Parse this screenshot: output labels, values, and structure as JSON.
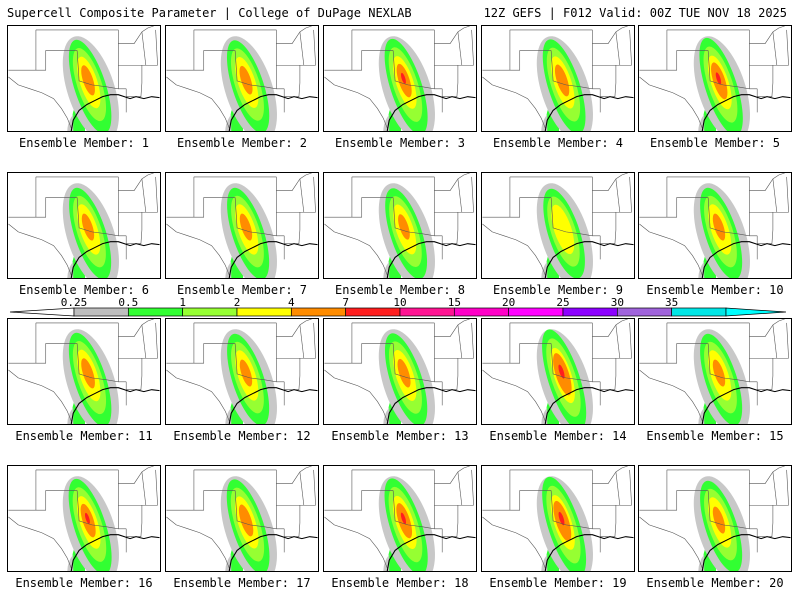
{
  "header": {
    "left": "Supercell Composite Parameter | College of DuPage NEXLAB",
    "right": "12Z GEFS | F012 Valid: 00Z TUE NOV 18 2025"
  },
  "panels": [
    {
      "label": "Ensemble Member: 1",
      "intensity": 0.55
    },
    {
      "label": "Ensemble Member: 2",
      "intensity": 0.5
    },
    {
      "label": "Ensemble Member: 3",
      "intensity": 0.65
    },
    {
      "label": "Ensemble Member: 4",
      "intensity": 0.6
    },
    {
      "label": "Ensemble Member: 5",
      "intensity": 0.75
    },
    {
      "label": "Ensemble Member: 6",
      "intensity": 0.45
    },
    {
      "label": "Ensemble Member: 7",
      "intensity": 0.45
    },
    {
      "label": "Ensemble Member: 8",
      "intensity": 0.4
    },
    {
      "label": "Ensemble Member: 9",
      "intensity": 0.35
    },
    {
      "label": "Ensemble Member: 10",
      "intensity": 0.45
    },
    {
      "label": "Ensemble Member: 11",
      "intensity": 0.55
    },
    {
      "label": "Ensemble Member: 12",
      "intensity": 0.45
    },
    {
      "label": "Ensemble Member: 13",
      "intensity": 0.5
    },
    {
      "label": "Ensemble Member: 14",
      "intensity": 0.9
    },
    {
      "label": "Ensemble Member: 15",
      "intensity": 0.45
    },
    {
      "label": "Ensemble Member: 16",
      "intensity": 0.65
    },
    {
      "label": "Ensemble Member: 17",
      "intensity": 0.6
    },
    {
      "label": "Ensemble Member: 18",
      "intensity": 0.7
    },
    {
      "label": "Ensemble Member: 19",
      "intensity": 0.85
    },
    {
      "label": "Ensemble Member: 20",
      "intensity": 0.45
    }
  ],
  "colorbar": {
    "ticks": [
      "0.25",
      "0.5",
      "1",
      "2",
      "4",
      "7",
      "10",
      "15",
      "20",
      "25",
      "30",
      "35"
    ],
    "colors": [
      "#bebebe",
      "#32ff32",
      "#96ff32",
      "#ffff00",
      "#ff8c00",
      "#ff1e1e",
      "#ff1493",
      "#ff00c8",
      "#ff00ff",
      "#8c00ff",
      "#a064dc",
      "#00e6e6"
    ],
    "under_color": "#ffffff",
    "over_color": "#00ffff"
  },
  "field_colors": {
    "gray": "#c8c8c8",
    "green": "#32ff32",
    "lime": "#96ff32",
    "yellow": "#ffff00",
    "orange": "#ff8c00",
    "red": "#ff1e1e"
  }
}
